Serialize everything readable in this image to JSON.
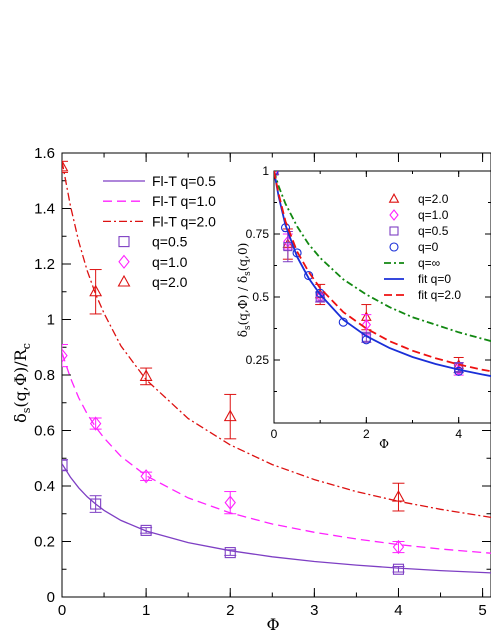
{
  "chart_data": [
    {
      "type": "scatter",
      "title": "",
      "xlabel": "Φ",
      "ylabel": "δ_s(q,Φ)/R_c",
      "xlim": [
        0,
        5.1
      ],
      "ylim": [
        0,
        1.6
      ],
      "x_ticks": [
        "0",
        "1",
        "2",
        "3",
        "4",
        "5"
      ],
      "y_ticks": [
        "0",
        "0.2",
        "0.4",
        "0.6",
        "0.8",
        "1",
        "1.2",
        "1.4",
        "1.6"
      ],
      "grid": false,
      "legend_position": "top-left",
      "series": [
        {
          "name": "Fl-T q=0.5",
          "kind": "line",
          "style": "solid",
          "color": "#7e3fc4",
          "x": [
            0,
            0.1,
            0.2,
            0.3,
            0.4,
            0.5,
            0.7,
            1,
            1.5,
            2,
            2.5,
            3,
            3.5,
            4,
            4.5,
            5.1
          ],
          "y": [
            0.48,
            0.432,
            0.393,
            0.361,
            0.335,
            0.312,
            0.276,
            0.238,
            0.196,
            0.167,
            0.145,
            0.128,
            0.115,
            0.104,
            0.095,
            0.087
          ]
        },
        {
          "name": "Fl-T q=1.0",
          "kind": "line",
          "style": "dashed",
          "color": "#ff22ff",
          "x": [
            0,
            0.1,
            0.2,
            0.3,
            0.4,
            0.5,
            0.7,
            1,
            1.5,
            2,
            2.5,
            3,
            3.5,
            4,
            4.5,
            5.1
          ],
          "y": [
            0.88,
            0.79,
            0.717,
            0.66,
            0.613,
            0.573,
            0.507,
            0.437,
            0.357,
            0.303,
            0.263,
            0.233,
            0.209,
            0.189,
            0.173,
            0.158
          ]
        },
        {
          "name": "Fl-T q=2.0",
          "kind": "line",
          "style": "dashdot",
          "color": "#dd1111",
          "x": [
            0,
            0.1,
            0.2,
            0.3,
            0.4,
            0.5,
            0.7,
            1,
            1.5,
            2,
            2.5,
            3,
            3.5,
            4,
            4.5,
            5.1
          ],
          "y": [
            1.57,
            1.41,
            1.28,
            1.176,
            1.092,
            1.022,
            0.905,
            0.783,
            0.643,
            0.548,
            0.477,
            0.423,
            0.38,
            0.345,
            0.316,
            0.287
          ]
        },
        {
          "name": "q=0.5",
          "kind": "points",
          "marker": "square",
          "color": "#7e3fc4",
          "x": [
            0,
            0.4,
            1,
            2,
            4
          ],
          "y": [
            0.475,
            0.335,
            0.24,
            0.16,
            0.1
          ],
          "err": [
            0.02,
            0.03,
            0.01,
            0.01,
            0.01
          ]
        },
        {
          "name": "q=1.0",
          "kind": "points",
          "marker": "diamond",
          "color": "#ff22ff",
          "x": [
            0,
            0.4,
            1,
            2,
            4
          ],
          "y": [
            0.87,
            0.625,
            0.435,
            0.34,
            0.18
          ],
          "err": [
            0.04,
            0.02,
            0.015,
            0.04,
            0.02
          ]
        },
        {
          "name": "q=2.0",
          "kind": "points",
          "marker": "triangle",
          "color": "#dd1111",
          "x": [
            0,
            0.4,
            1,
            2,
            4
          ],
          "y": [
            1.55,
            1.1,
            0.795,
            0.65,
            0.36
          ],
          "err": [
            0.02,
            0.08,
            0.03,
            0.08,
            0.05
          ]
        }
      ]
    },
    {
      "type": "scatter",
      "title": "",
      "xlabel": "Φ",
      "ylabel": "δ_s(q,Φ) / δ_s(q,0)",
      "xlim": [
        0,
        4.7
      ],
      "ylim": [
        0,
        1
      ],
      "x_ticks": [
        "0",
        "2",
        "4"
      ],
      "y_ticks": [
        "0.25",
        "0.5",
        "0.75",
        "1"
      ],
      "grid": false,
      "legend_position": "top-right",
      "series": [
        {
          "name": "q=2.0",
          "kind": "points",
          "marker": "triangle",
          "color": "#dd1111",
          "x": [
            0,
            0.3,
            1,
            2,
            4
          ],
          "y": [
            1,
            0.71,
            0.51,
            0.42,
            0.23
          ],
          "err": [
            0,
            0.06,
            0.04,
            0.05,
            0.03
          ]
        },
        {
          "name": "q=1.0",
          "kind": "points",
          "marker": "diamond",
          "color": "#ff22ff",
          "x": [
            0,
            0.3,
            1,
            2,
            4
          ],
          "y": [
            1,
            0.72,
            0.5,
            0.39,
            0.21
          ],
          "err": [
            0,
            0.03,
            0.02,
            0.04,
            0.02
          ]
        },
        {
          "name": "q=0.5",
          "kind": "points",
          "marker": "square",
          "color": "#7e3fc4",
          "x": [
            0,
            0.3,
            1,
            2,
            4
          ],
          "y": [
            1,
            0.7,
            0.5,
            0.34,
            0.22
          ],
          "err": [
            0,
            0.06,
            0.02,
            0.02,
            0.02
          ]
        },
        {
          "name": "q=0",
          "kind": "points",
          "marker": "circle",
          "color": "#1a2fd8",
          "x": [
            0,
            0.25,
            0.5,
            0.75,
            1,
            1.5,
            2,
            4
          ],
          "y": [
            1,
            0.775,
            0.675,
            0.585,
            0.515,
            0.4,
            0.33,
            0.205
          ],
          "err": [
            0,
            0,
            0,
            0,
            0,
            0,
            0,
            0
          ]
        },
        {
          "name": "q=∞",
          "kind": "line",
          "style": "dashdot",
          "color": "#118811",
          "x": [
            0,
            0.1,
            0.25,
            0.5,
            0.75,
            1,
            1.5,
            2,
            2.5,
            3,
            3.5,
            4,
            4.5,
            4.7
          ],
          "y": [
            1,
            0.94,
            0.87,
            0.78,
            0.71,
            0.655,
            0.57,
            0.51,
            0.46,
            0.42,
            0.39,
            0.36,
            0.335,
            0.325
          ]
        },
        {
          "name": "fit q=0",
          "kind": "line",
          "style": "solid",
          "color": "#1a2fd8",
          "x": [
            0,
            0.1,
            0.25,
            0.5,
            0.75,
            1,
            1.5,
            2,
            2.5,
            3,
            3.5,
            4,
            4.5,
            4.7
          ],
          "y": [
            1,
            0.9,
            0.785,
            0.66,
            0.575,
            0.51,
            0.41,
            0.345,
            0.298,
            0.262,
            0.234,
            0.212,
            0.193,
            0.186
          ]
        },
        {
          "name": "fit q=2.0",
          "kind": "line",
          "style": "dashed",
          "color": "#ee1111",
          "x": [
            0,
            0.1,
            0.25,
            0.5,
            0.75,
            1,
            1.5,
            2,
            2.5,
            3,
            3.5,
            4,
            4.5,
            4.7
          ],
          "y": [
            1,
            0.91,
            0.8,
            0.68,
            0.6,
            0.535,
            0.44,
            0.375,
            0.325,
            0.287,
            0.257,
            0.232,
            0.212,
            0.205
          ]
        }
      ]
    }
  ]
}
